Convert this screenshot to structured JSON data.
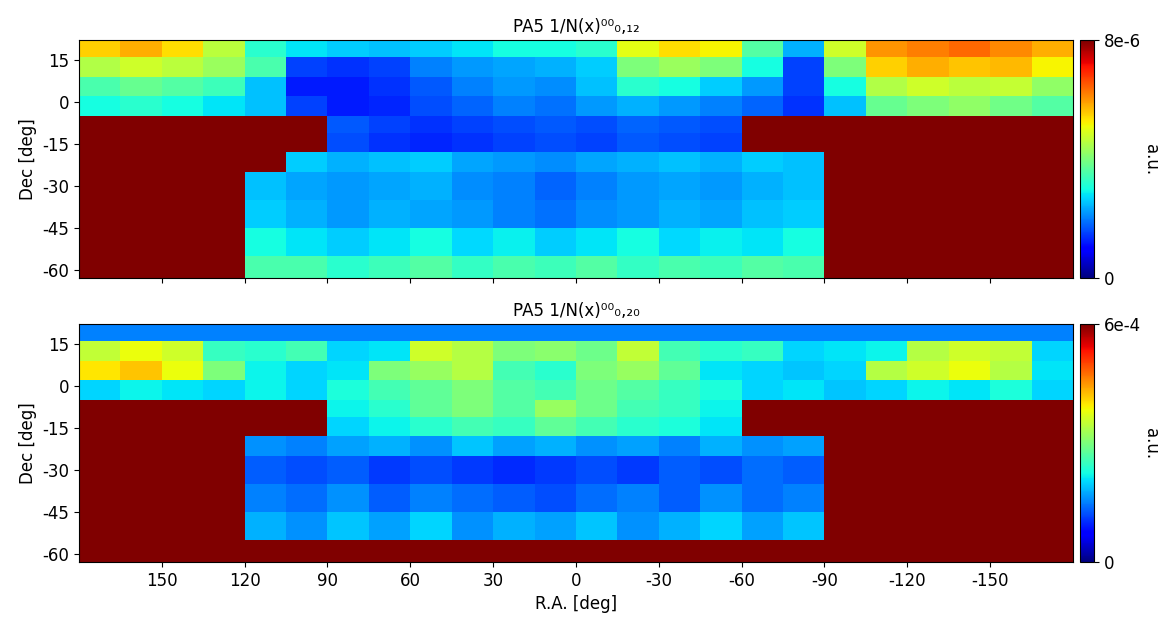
{
  "chart_data": [
    {
      "type": "heatmap",
      "title": "PA5 1/N(x)⁰⁰₀,₁₂",
      "y_label": "Dec [deg]",
      "tick_labels": "y",
      "xlim": [
        180,
        -180
      ],
      "ylim": [
        -63,
        22
      ],
      "xticks": [
        150,
        120,
        90,
        60,
        30,
        0,
        -30,
        -60,
        -90,
        -120,
        -150
      ],
      "yticks": [
        -60,
        -45,
        -30,
        -15,
        0,
        15
      ],
      "x_edges": [
        180,
        165,
        150,
        135,
        120,
        105,
        90,
        75,
        60,
        45,
        30,
        15,
        0,
        -15,
        -30,
        -45,
        -60,
        -75,
        -90,
        -105,
        -120,
        -135,
        -150,
        -165,
        -180
      ],
      "y_edges": [
        -63,
        -55,
        -45,
        -35,
        -25,
        -18,
        -11,
        -5,
        2,
        9,
        16,
        22
      ],
      "cells": [
        [
          null,
          null,
          null,
          null,
          3.5e-06,
          3.5e-06,
          3.2e-06,
          3.4e-06,
          3.6e-06,
          3.3e-06,
          3.5e-06,
          3.4e-06,
          3.6e-06,
          3.3e-06,
          3.5e-06,
          3.4e-06,
          3.6e-06,
          3.5e-06,
          null,
          null,
          null,
          null,
          null,
          null
        ],
        [
          null,
          null,
          null,
          null,
          3e-06,
          2.8e-06,
          2.6e-06,
          2.8e-06,
          3e-06,
          2.7e-06,
          2.9e-06,
          2.6e-06,
          2.8e-06,
          3e-06,
          2.7e-06,
          2.9e-06,
          2.8e-06,
          3e-06,
          null,
          null,
          null,
          null,
          null,
          null
        ],
        [
          null,
          null,
          null,
          null,
          2.6e-06,
          2.4e-06,
          2.2e-06,
          2.4e-06,
          2.3e-06,
          2.2e-06,
          2e-06,
          1.9e-06,
          2.1e-06,
          2.2e-06,
          2.4e-06,
          2.3e-06,
          2.5e-06,
          2.6e-06,
          null,
          null,
          null,
          null,
          null,
          null
        ],
        [
          null,
          null,
          null,
          null,
          2.5e-06,
          2.3e-06,
          2.2e-06,
          2.3e-06,
          2.4e-06,
          2.1e-06,
          2e-06,
          1.8e-06,
          2e-06,
          2.2e-06,
          2.3e-06,
          2.2e-06,
          2.4e-06,
          2.5e-06,
          null,
          null,
          null,
          null,
          null,
          null
        ],
        [
          null,
          null,
          null,
          null,
          null,
          2.6e-06,
          2.4e-06,
          2.5e-06,
          2.6e-06,
          2.3e-06,
          2.2e-06,
          2.1e-06,
          2.3e-06,
          2.4e-06,
          2.5e-06,
          2.4e-06,
          2.6e-06,
          2.5e-06,
          null,
          null,
          null,
          null,
          null,
          null
        ],
        [
          null,
          null,
          null,
          null,
          null,
          null,
          1.6e-06,
          1.4e-06,
          1.3e-06,
          1.4e-06,
          1.5e-06,
          1.6e-06,
          1.5e-06,
          1.7e-06,
          1.6e-06,
          1.5e-06,
          null,
          null,
          null,
          null,
          null,
          null,
          null,
          null
        ],
        [
          null,
          null,
          null,
          null,
          null,
          null,
          1.7e-06,
          1.5e-06,
          1.4e-06,
          1.5e-06,
          1.6e-06,
          1.7e-06,
          1.6e-06,
          1.8e-06,
          1.7e-06,
          1.6e-06,
          null,
          null,
          null,
          null,
          null,
          null,
          null,
          null
        ],
        [
          3e-06,
          3.2e-06,
          3e-06,
          2.8e-06,
          2.5e-06,
          1.5e-06,
          1.2e-06,
          1.3e-06,
          1.6e-06,
          1.8e-06,
          2e-06,
          1.9e-06,
          2.2e-06,
          2.4e-06,
          2.2e-06,
          2e-06,
          1.8e-06,
          1.4e-06,
          2.5e-06,
          3.8e-06,
          4e-06,
          4.2e-06,
          3.9e-06,
          3.6e-06
        ],
        [
          3.5e-06,
          3.8e-06,
          3.6e-06,
          3.4e-06,
          2.5e-06,
          1.2e-06,
          1.2e-06,
          1.4e-06,
          1.7e-06,
          2e-06,
          2.2e-06,
          2.1e-06,
          2.5e-06,
          3.2e-06,
          3e-06,
          2.6e-06,
          2.2e-06,
          1.5e-06,
          3e-06,
          4.5e-06,
          4.8e-06,
          4.6e-06,
          4.7e-06,
          4.2e-06
        ],
        [
          4.5e-06,
          4.8e-06,
          4.6e-06,
          4.3e-06,
          3.5e-06,
          1.5e-06,
          1.4e-06,
          1.5e-06,
          2e-06,
          2.2e-06,
          2.3e-06,
          2.4e-06,
          2.6e-06,
          4e-06,
          4.3e-06,
          4e-06,
          3e-06,
          1.5e-06,
          4e-06,
          5.5e-06,
          5.8e-06,
          5.6e-06,
          5.7e-06,
          5.2e-06
        ],
        [
          5.5e-06,
          5.8e-06,
          5.4e-06,
          4.6e-06,
          3.2e-06,
          2.8e-06,
          2.6e-06,
          2.5e-06,
          2.6e-06,
          2.8e-06,
          3e-06,
          3e-06,
          3.2e-06,
          5e-06,
          5.4e-06,
          5.2e-06,
          3.6e-06,
          2.4e-06,
          4.8e-06,
          6e-06,
          6.2e-06,
          6.4e-06,
          6.1e-06,
          5.8e-06
        ]
      ],
      "colorbar_range": [
        0,
        8e-06
      ],
      "colorbar_ticks": [
        0,
        {
          "value": 8e-06,
          "label": "8e-6"
        }
      ],
      "colorbar_label": "a.u."
    },
    {
      "type": "heatmap",
      "title": "PA5 1/N(x)⁰⁰₀,₂₀",
      "x_label": "R.A. [deg]",
      "y_label": "Dec [deg]",
      "xlim": [
        180,
        -180
      ],
      "ylim": [
        -63,
        22
      ],
      "xticks": [
        150,
        120,
        90,
        60,
        30,
        0,
        -30,
        -60,
        -90,
        -120,
        -150
      ],
      "yticks": [
        -60,
        -45,
        -30,
        -15,
        0,
        15
      ],
      "x_edges": [
        180,
        165,
        150,
        135,
        120,
        105,
        90,
        75,
        60,
        45,
        30,
        15,
        0,
        -15,
        -30,
        -45,
        -60,
        -75,
        -90,
        -105,
        -120,
        -135,
        -150,
        -165,
        -180
      ],
      "y_edges": [
        -63,
        -55,
        -45,
        -35,
        -25,
        -18,
        -11,
        -5,
        2,
        9,
        16,
        22
      ],
      "cells": [
        [
          null,
          null,
          null,
          null,
          null,
          null,
          null,
          null,
          null,
          null,
          null,
          null,
          null,
          null,
          null,
          null,
          null,
          null,
          null,
          null,
          null,
          null,
          null,
          null
        ],
        [
          null,
          null,
          null,
          null,
          0.00018,
          0.00016,
          0.00019,
          0.00017,
          0.0002,
          0.00016,
          0.00018,
          0.00017,
          0.00019,
          0.00016,
          0.00018,
          0.0002,
          0.00017,
          0.00019,
          null,
          null,
          null,
          null,
          null,
          null
        ],
        [
          null,
          null,
          null,
          null,
          0.00015,
          0.00014,
          0.00016,
          0.00013,
          0.00015,
          0.00014,
          0.00013,
          0.00012,
          0.00014,
          0.00015,
          0.00013,
          0.00016,
          0.00014,
          0.00015,
          null,
          null,
          null,
          null,
          null,
          null
        ],
        [
          null,
          null,
          null,
          null,
          0.00013,
          0.00012,
          0.00013,
          0.00011,
          0.00012,
          0.00011,
          0.0001,
          0.00011,
          0.00012,
          0.00011,
          0.00013,
          0.00012,
          0.00014,
          0.00013,
          null,
          null,
          null,
          null,
          null,
          null
        ],
        [
          null,
          null,
          null,
          null,
          0.00016,
          0.00015,
          0.00017,
          0.00018,
          0.00016,
          0.00019,
          0.00017,
          0.00018,
          0.00016,
          0.00017,
          0.00015,
          0.00018,
          0.00016,
          0.00017,
          null,
          null,
          null,
          null,
          null,
          null
        ],
        [
          null,
          null,
          null,
          null,
          null,
          null,
          0.0002,
          0.00022,
          0.00024,
          0.00026,
          0.00025,
          0.00028,
          0.00026,
          0.00024,
          0.00023,
          0.00021,
          null,
          null,
          null,
          null,
          null,
          null,
          null,
          null
        ],
        [
          null,
          null,
          null,
          null,
          null,
          null,
          0.00022,
          0.00024,
          0.00028,
          0.0003,
          0.00027,
          0.00032,
          0.00029,
          0.00026,
          0.00025,
          0.00022,
          null,
          null,
          null,
          null,
          null,
          null,
          null,
          null
        ],
        [
          0.0002,
          0.00022,
          0.00021,
          0.0002,
          0.00022,
          0.0002,
          0.00023,
          0.00026,
          0.00028,
          0.0003,
          0.00027,
          0.00026,
          0.00029,
          0.00027,
          0.00025,
          0.00023,
          0.0002,
          0.00021,
          0.00019,
          0.0002,
          0.00022,
          0.00021,
          0.00023,
          0.0002
        ],
        [
          0.0004,
          0.00042,
          0.00038,
          0.0003,
          0.00022,
          0.0002,
          0.00021,
          0.0003,
          0.00032,
          0.00034,
          0.00026,
          0.00024,
          0.0003,
          0.00032,
          0.00028,
          0.00021,
          0.0002,
          0.00019,
          0.0002,
          0.00034,
          0.00036,
          0.00038,
          0.00034,
          0.00021
        ],
        [
          0.00035,
          0.00038,
          0.00036,
          0.00025,
          0.00024,
          0.00026,
          0.0002,
          0.00021,
          0.00036,
          0.00034,
          0.0003,
          0.00031,
          0.00029,
          0.00035,
          0.00026,
          0.00024,
          0.00025,
          0.0002,
          0.00021,
          0.00022,
          0.00034,
          0.00036,
          0.00035,
          0.0002
        ],
        [
          0.00015,
          0.00015,
          0.00015,
          0.00015,
          0.00015,
          0.00015,
          0.00015,
          0.00015,
          0.00015,
          0.00015,
          0.00015,
          0.00015,
          0.00015,
          0.00015,
          0.00015,
          0.00015,
          0.00015,
          0.00015,
          0.00015,
          0.00015,
          0.00015,
          0.00015,
          0.00015,
          0.00015
        ]
      ],
      "colorbar_range": [
        0,
        0.0006
      ],
      "colorbar_ticks": [
        0,
        {
          "value": 0.0006,
          "label": "6e-4"
        }
      ],
      "colorbar_label": "a.u."
    }
  ]
}
